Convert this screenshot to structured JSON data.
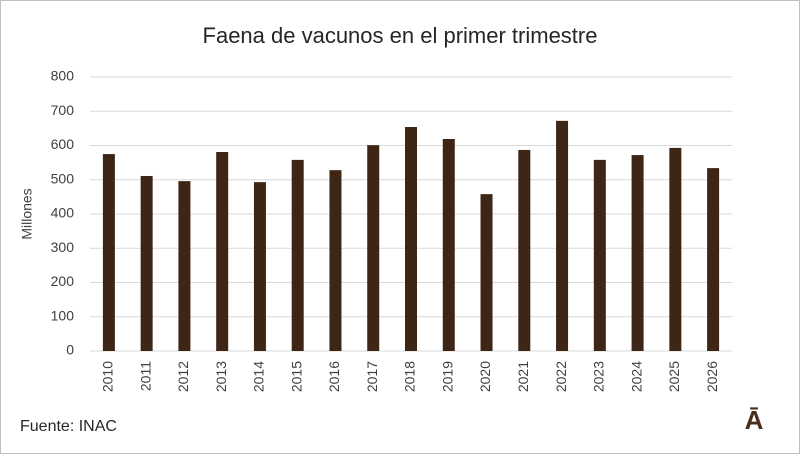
{
  "chart_data": {
    "type": "bar",
    "title": "Faena de vacunos en el primer trimestre",
    "y_label": "Millones",
    "categories": [
      "2010",
      "2011",
      "2012",
      "2013",
      "2014",
      "2015",
      "2016",
      "2017",
      "2018",
      "2019",
      "2020",
      "2021",
      "2022",
      "2023",
      "2024",
      "2025",
      "2026"
    ],
    "values": [
      575,
      511,
      496,
      581,
      493,
      558,
      528,
      601,
      654,
      619,
      458,
      587,
      672,
      558,
      572,
      593,
      534
    ],
    "color": "#3d2616",
    "ylim": [
      0,
      800
    ],
    "yticks": [
      0,
      100,
      200,
      300,
      400,
      500,
      600,
      700,
      800
    ],
    "grid": true,
    "source": "Fuente: INAC",
    "logo": "Ā"
  }
}
